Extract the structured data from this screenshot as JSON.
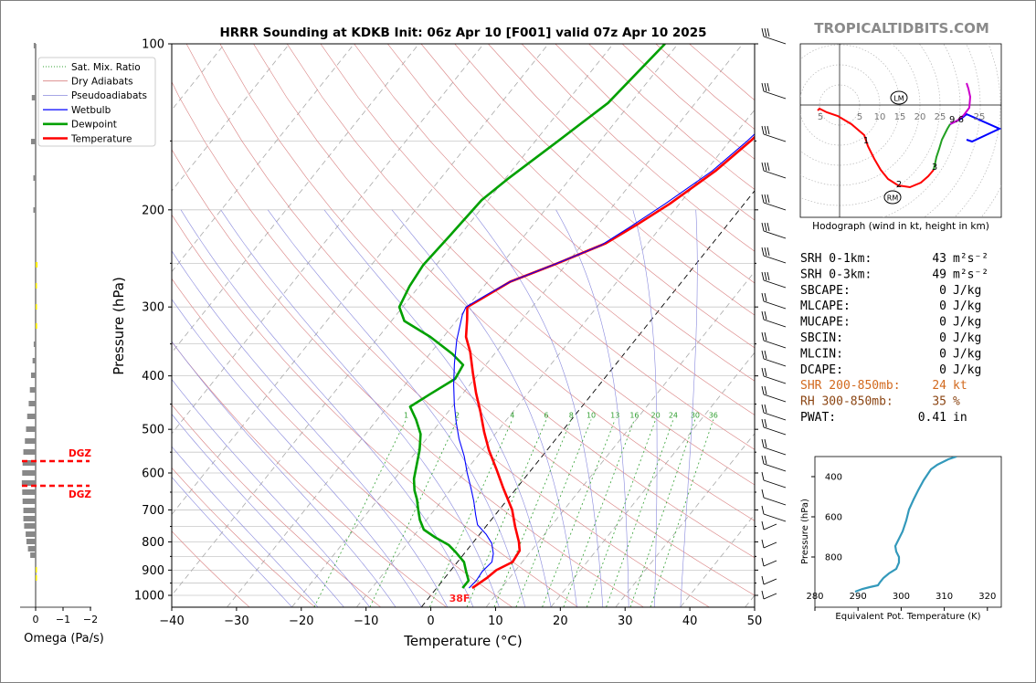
{
  "title": "HRRR Sounding at KDKB Init: 06z Apr 10 [F001] valid 07z Apr 10 2025",
  "watermark": "TROPICALTIDBITS.COM",
  "omega_panel": {
    "xlabel": "Omega (Pa/s)",
    "ticks": [
      "0",
      "−1",
      "−2"
    ],
    "dgz_label": "DGZ"
  },
  "hodograph": {
    "caption": "Hodograph (wind in kt, height in km)",
    "ring_labels": [
      "5",
      "10",
      "15",
      "20",
      "25",
      "5",
      "25"
    ],
    "height_labels": [
      "1",
      "2",
      "3",
      "9.6"
    ],
    "lm_label": "LM",
    "rm_label": "RM"
  },
  "indices": [
    {
      "label": "SRH 0-1km:",
      "value": "43",
      "unit": "m²s⁻²",
      "color": "#000000"
    },
    {
      "label": "SRH 0-3km:",
      "value": "49",
      "unit": "m²s⁻²",
      "color": "#000000"
    },
    {
      "label": "SBCAPE:",
      "value": "0",
      "unit": "J/kg",
      "color": "#000000"
    },
    {
      "label": "MLCAPE:",
      "value": "0",
      "unit": "J/kg",
      "color": "#000000"
    },
    {
      "label": "MUCAPE:",
      "value": "0",
      "unit": "J/kg",
      "color": "#000000"
    },
    {
      "label": "SBCIN:",
      "value": "0",
      "unit": "J/kg",
      "color": "#000000"
    },
    {
      "label": "MLCIN:",
      "value": "0",
      "unit": "J/kg",
      "color": "#000000"
    },
    {
      "label": "DCAPE:",
      "value": "0",
      "unit": "J/kg",
      "color": "#000000"
    },
    {
      "label": "SHR 200-850mb:",
      "value": "24",
      "unit": "kt",
      "color": "#d2691e"
    },
    {
      "label": "RH 300-850mb:",
      "value": "35",
      "unit": "%",
      "color": "#8b4513"
    },
    {
      "label": "PWAT:",
      "value": "0.41",
      "unit": "in",
      "color": "#000000"
    }
  ],
  "theta_e_panel": {
    "xlabel": "Equivalent Pot. Temperature (K)",
    "ylabel": "Pressure (hPa)",
    "x_ticks": [
      "280",
      "290",
      "300",
      "310",
      "320"
    ],
    "y_ticks": [
      "400",
      "600",
      "800"
    ]
  },
  "surface_label": "38F",
  "chart_data": {
    "type": "line",
    "title": "HRRR Sounding at KDKB Init: 06z Apr 10 [F001] valid 07z Apr 10 2025",
    "xlabel": "Temperature (°C)",
    "ylabel": "Pressure (hPa)",
    "xlim": [
      -40,
      50
    ],
    "ylim": [
      1050,
      100
    ],
    "y_scale": "log",
    "grid": true,
    "legend_position": "top-left",
    "x_ticks": [
      "−40",
      "−30",
      "−20",
      "−10",
      "0",
      "10",
      "20",
      "30",
      "40",
      "50"
    ],
    "y_ticks": [
      "100",
      "200",
      "300",
      "400",
      "500",
      "600",
      "700",
      "800",
      "900",
      "1000"
    ],
    "mixing_ratio_labels": [
      "1",
      "2",
      "4",
      "6",
      "8",
      "10",
      "13",
      "16",
      "20",
      "24",
      "30",
      "36"
    ],
    "legend": [
      "Sat. Mix. Ratio",
      "Dry Adiabats",
      "Pseudoadiabats",
      "Wetbulb",
      "Dewpoint",
      "Temperature"
    ],
    "series": [
      {
        "name": "Temperature",
        "color": "#ff0000",
        "points": [
          [
            5.5,
            970
          ],
          [
            6.5,
            930
          ],
          [
            7,
            900
          ],
          [
            8.5,
            870
          ],
          [
            8.2,
            830
          ],
          [
            7,
            800
          ],
          [
            4.5,
            750
          ],
          [
            2,
            700
          ],
          [
            -2,
            640
          ],
          [
            -5.5,
            590
          ],
          [
            -9,
            545
          ],
          [
            -12,
            505
          ],
          [
            -15,
            465
          ],
          [
            -18,
            430
          ],
          [
            -21,
            395
          ],
          [
            -24,
            362
          ],
          [
            -26.5,
            340
          ],
          [
            -28.5,
            316
          ],
          [
            -30,
            300
          ],
          [
            -28.3,
            285
          ],
          [
            -26.5,
            270
          ],
          [
            -21.5,
            250
          ],
          [
            -16.5,
            230
          ],
          [
            -14,
            213
          ],
          [
            -11.5,
            195
          ],
          [
            -8.5,
            170
          ],
          [
            -6.8,
            150
          ],
          [
            -5.3,
            130
          ],
          [
            -3.8,
            112
          ],
          [
            -1.6,
            100
          ]
        ]
      },
      {
        "name": "Dewpoint",
        "color": "#00a000",
        "points": [
          [
            4,
            970
          ],
          [
            4,
            940
          ],
          [
            2.5,
            905
          ],
          [
            1,
            870
          ],
          [
            -1.5,
            835
          ],
          [
            -3.5,
            810
          ],
          [
            -6.5,
            785
          ],
          [
            -9.2,
            760
          ],
          [
            -11,
            730
          ],
          [
            -12.5,
            700
          ],
          [
            -14,
            670
          ],
          [
            -15.5,
            645
          ],
          [
            -17,
            615
          ],
          [
            -18.3,
            580
          ],
          [
            -19.7,
            545
          ],
          [
            -21.5,
            510
          ],
          [
            -24,
            480
          ],
          [
            -26.5,
            455
          ],
          [
            -25,
            432
          ],
          [
            -23,
            405
          ],
          [
            -23.5,
            382
          ],
          [
            -26.5,
            365
          ],
          [
            -32,
            340
          ],
          [
            -38,
            318
          ],
          [
            -40.5,
            300
          ],
          [
            -41.5,
            275
          ],
          [
            -42,
            252
          ],
          [
            -41.5,
            222
          ],
          [
            -41,
            192
          ],
          [
            -39.5,
            175
          ],
          [
            -36.5,
            150
          ],
          [
            -33.5,
            128
          ],
          [
            -32,
            100
          ]
        ]
      },
      {
        "name": "Wetbulb",
        "color": "#0000ff",
        "points": [
          [
            5,
            970
          ],
          [
            5.2,
            940
          ],
          [
            5,
            905
          ],
          [
            5.3,
            870
          ],
          [
            4.5,
            840
          ],
          [
            3,
            805
          ],
          [
            1,
            775
          ],
          [
            -1.5,
            745
          ],
          [
            -3,
            715
          ],
          [
            -5,
            675
          ],
          [
            -7,
            640
          ],
          [
            -9.5,
            600
          ],
          [
            -12,
            560
          ],
          [
            -15,
            520
          ],
          [
            -17.5,
            485
          ],
          [
            -20,
            450
          ],
          [
            -22.5,
            415
          ],
          [
            -25,
            380
          ],
          [
            -27.5,
            345
          ],
          [
            -29.8,
            310
          ],
          [
            -30.2,
            300
          ],
          [
            -28.5,
            285
          ],
          [
            -26.5,
            270
          ],
          [
            -22,
            252
          ],
          [
            -17,
            232
          ],
          [
            -14.8,
            215
          ],
          [
            -12.2,
            195
          ],
          [
            -9,
            170
          ],
          [
            -7.3,
            150
          ],
          [
            -5.8,
            130
          ],
          [
            -4.3,
            112
          ],
          [
            -2,
            100
          ]
        ]
      }
    ]
  }
}
